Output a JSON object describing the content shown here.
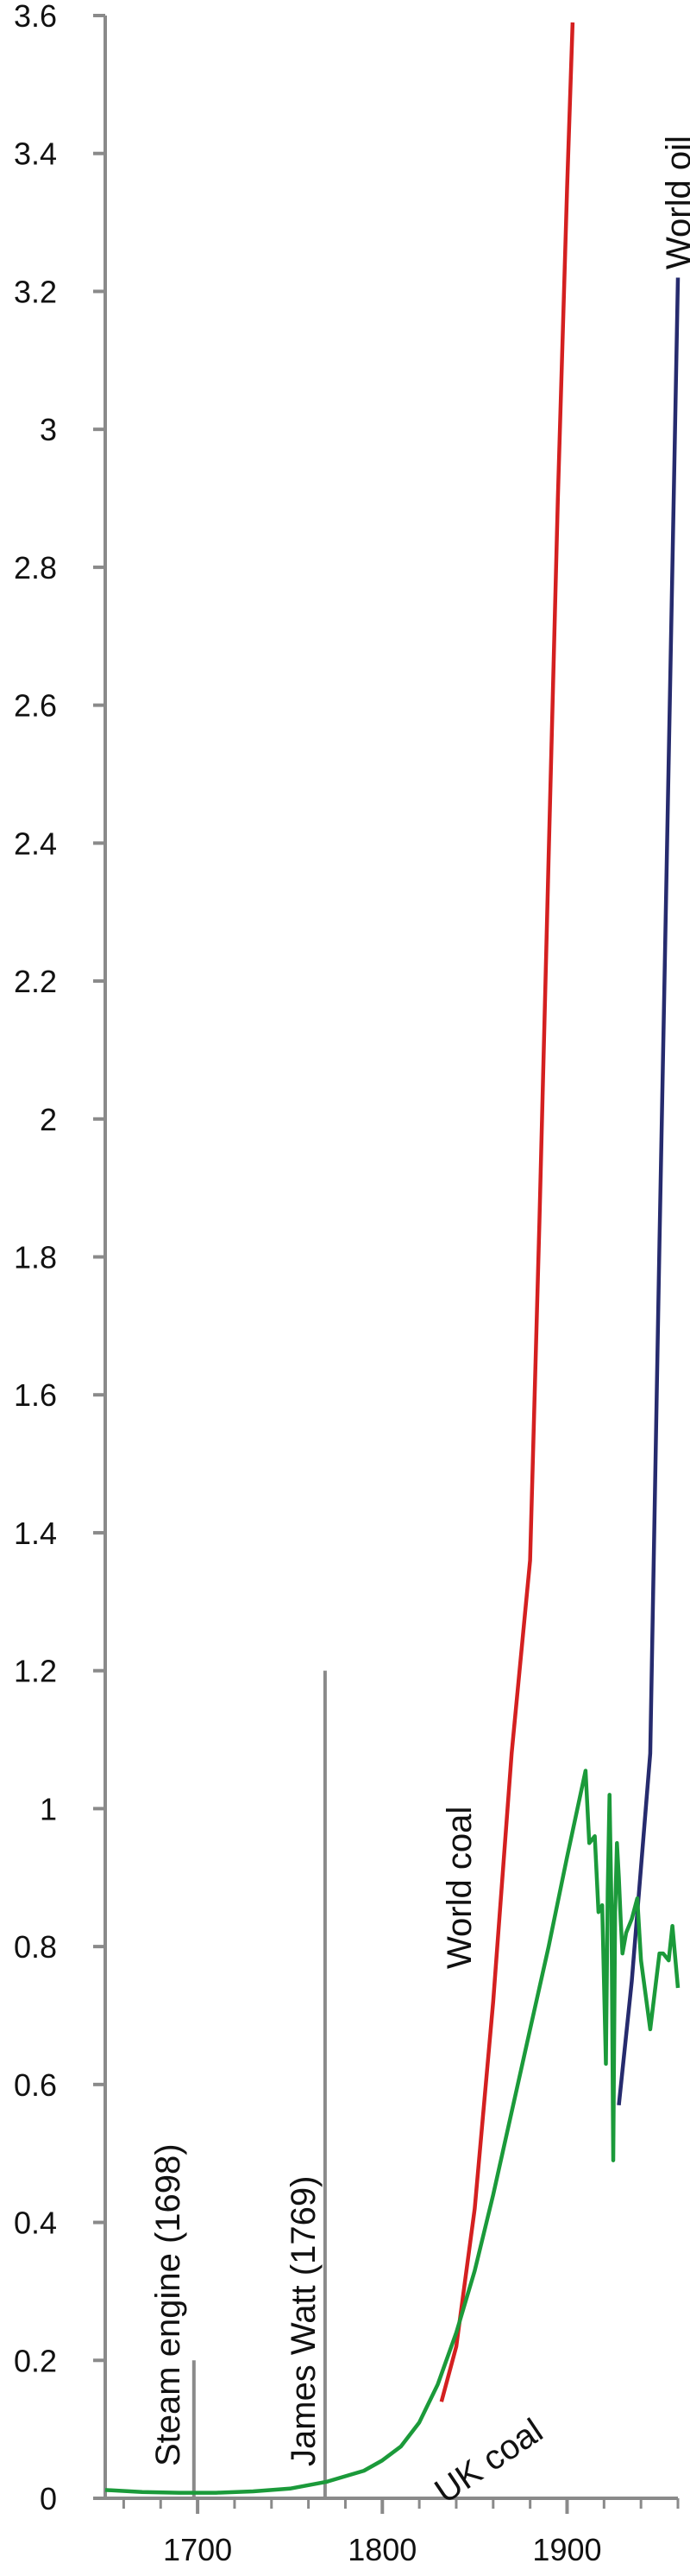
{
  "chart_data": {
    "type": "line",
    "title": "",
    "xlabel": "",
    "ylabel": "",
    "xlim": [
      1650,
      1960
    ],
    "ylim": [
      0,
      3.6
    ],
    "grid": false,
    "x_ticks": [
      1700,
      1800,
      1900
    ],
    "y_ticks": [
      0,
      0.2,
      0.4,
      0.6,
      0.8,
      1,
      1.2,
      1.4,
      1.6,
      1.8,
      2,
      2.2,
      2.4,
      2.6,
      2.8,
      3,
      3.2,
      3.4,
      3.6
    ],
    "y_tick_labels": [
      "0",
      "0.2",
      "0.4",
      "0.6",
      "0.8",
      "1",
      "1.2",
      "1.4",
      "1.6",
      "1.8",
      "2",
      "2.2",
      "2.4",
      "2.6",
      "2.8",
      "3",
      "3.2",
      "3.4",
      "3.6"
    ],
    "series": [
      {
        "name": "World coal",
        "color": "#d42020",
        "x": [
          1832,
          1840,
          1850,
          1860,
          1870,
          1880,
          1885,
          1890,
          1895,
          1900,
          1903
        ],
        "y": [
          0.14,
          0.22,
          0.42,
          0.72,
          1.08,
          1.36,
          1.85,
          2.38,
          2.9,
          3.35,
          3.59
        ]
      },
      {
        "name": "World oil",
        "color": "#262b6e",
        "x": [
          1928,
          1935,
          1945,
          1950,
          1955,
          1960
        ],
        "y": [
          0.57,
          0.75,
          1.08,
          1.82,
          2.52,
          3.22
        ]
      },
      {
        "name": "UK coal",
        "color": "#1b9a3a",
        "x": [
          1650,
          1670,
          1690,
          1710,
          1730,
          1750,
          1770,
          1790,
          1800,
          1810,
          1820,
          1830,
          1840,
          1850,
          1860,
          1870,
          1880,
          1890,
          1900,
          1910,
          1912,
          1915,
          1917,
          1919,
          1921,
          1922,
          1923,
          1924,
          1925,
          1926,
          1927,
          1928,
          1929,
          1930,
          1932,
          1935,
          1938,
          1940,
          1945,
          1950,
          1952,
          1955,
          1957,
          1960
        ],
        "y": [
          0.012,
          0.009,
          0.008,
          0.008,
          0.01,
          0.014,
          0.024,
          0.04,
          0.055,
          0.075,
          0.11,
          0.165,
          0.24,
          0.33,
          0.44,
          0.56,
          0.68,
          0.8,
          0.93,
          1.055,
          0.95,
          0.96,
          0.85,
          0.86,
          0.63,
          0.88,
          1.02,
          0.86,
          0.49,
          0.85,
          0.95,
          0.9,
          0.84,
          0.79,
          0.82,
          0.84,
          0.87,
          0.78,
          0.68,
          0.79,
          0.79,
          0.78,
          0.83,
          0.74
        ]
      }
    ],
    "annotations": [
      {
        "id": "steam-engine",
        "text": "Steam engine (1698)",
        "x": 1698,
        "y_top": 0.2
      },
      {
        "id": "james-watt",
        "text": "James Watt (1769)",
        "x": 1769,
        "y_top": 1.2
      }
    ],
    "series_labels": [
      {
        "series": "World oil",
        "text": "World oil"
      },
      {
        "series": "World coal",
        "text": "World coal"
      },
      {
        "series": "UK coal",
        "text": "UK coal"
      }
    ],
    "axis_color": "#8a8a8a"
  }
}
